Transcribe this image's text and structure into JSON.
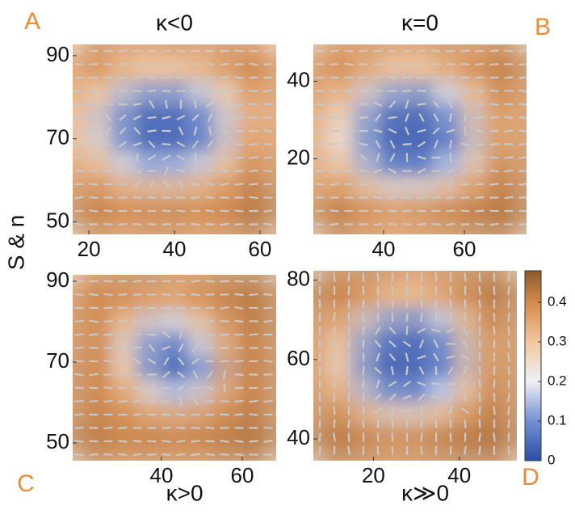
{
  "ylabel": "S & n",
  "colorbar": {
    "lim": [
      0,
      0.48
    ],
    "ticks": [
      0,
      0.1,
      0.2,
      0.3,
      0.4
    ],
    "colorscale": [
      [
        0,
        "#2b4ea6"
      ],
      [
        0.1,
        "#7390d2"
      ],
      [
        0.2,
        "#eef0f6"
      ],
      [
        0.3,
        "#f2c8a0"
      ],
      [
        0.4,
        "#d58a4a"
      ],
      [
        0.48,
        "#8c5a2c"
      ]
    ]
  },
  "chart_data": [
    {
      "type": "heatmap",
      "label": "A",
      "title": "κ<0",
      "xlim": [
        16.2,
        63.8
      ],
      "ylim": [
        47,
        92.7
      ],
      "xticks": [
        20,
        40,
        60
      ],
      "yticks": [
        50,
        70,
        90
      ],
      "director": "horizontal",
      "values": [
        [
          0.4,
          0.42,
          0.38,
          0.4,
          0.41,
          0.39,
          0.42,
          0.4
        ],
        [
          0.39,
          0.36,
          0.3,
          0.28,
          0.29,
          0.33,
          0.38,
          0.41
        ],
        [
          0.37,
          0.25,
          0.12,
          0.08,
          0.1,
          0.18,
          0.3,
          0.39
        ],
        [
          0.33,
          0.15,
          0.04,
          0.02,
          0.03,
          0.08,
          0.25,
          0.38
        ],
        [
          0.35,
          0.18,
          0.05,
          0.03,
          0.04,
          0.1,
          0.28,
          0.4
        ],
        [
          0.39,
          0.3,
          0.18,
          0.12,
          0.15,
          0.25,
          0.35,
          0.41
        ],
        [
          0.42,
          0.38,
          0.35,
          0.33,
          0.34,
          0.37,
          0.4,
          0.43
        ],
        [
          0.43,
          0.41,
          0.4,
          0.42,
          0.41,
          0.4,
          0.42,
          0.44
        ]
      ]
    },
    {
      "type": "heatmap",
      "label": "B",
      "title": "κ=0",
      "xlim": [
        22.6,
        75.4
      ],
      "ylim": [
        0.5,
        49.5
      ],
      "xticks": [
        40,
        60
      ],
      "yticks": [
        20,
        40
      ],
      "director": "horizontal",
      "values": [
        [
          0.42,
          0.4,
          0.41,
          0.39,
          0.4,
          0.42,
          0.41,
          0.43
        ],
        [
          0.4,
          0.38,
          0.32,
          0.28,
          0.3,
          0.35,
          0.4,
          0.42
        ],
        [
          0.39,
          0.3,
          0.15,
          0.08,
          0.1,
          0.2,
          0.35,
          0.41
        ],
        [
          0.37,
          0.22,
          0.05,
          0.02,
          0.03,
          0.1,
          0.3,
          0.4
        ],
        [
          0.36,
          0.2,
          0.04,
          0.02,
          0.03,
          0.08,
          0.28,
          0.41
        ],
        [
          0.38,
          0.28,
          0.12,
          0.05,
          0.08,
          0.18,
          0.34,
          0.42
        ],
        [
          0.41,
          0.37,
          0.3,
          0.25,
          0.28,
          0.35,
          0.4,
          0.43
        ],
        [
          0.43,
          0.42,
          0.4,
          0.39,
          0.41,
          0.42,
          0.43,
          0.44
        ]
      ]
    },
    {
      "type": "heatmap",
      "label": "C",
      "xlabel": "κ>0",
      "xlim": [
        18,
        68.4
      ],
      "ylim": [
        45.6,
        91.6
      ],
      "xticks": [
        40,
        60
      ],
      "yticks": [
        50,
        70,
        90
      ],
      "director": "horizontal",
      "values": [
        [
          0.42,
          0.41,
          0.43,
          0.42,
          0.4,
          0.42,
          0.43,
          0.44
        ],
        [
          0.41,
          0.4,
          0.38,
          0.35,
          0.36,
          0.4,
          0.42,
          0.43
        ],
        [
          0.42,
          0.39,
          0.28,
          0.15,
          0.18,
          0.32,
          0.41,
          0.43
        ],
        [
          0.42,
          0.38,
          0.18,
          0.04,
          0.05,
          0.22,
          0.4,
          0.42
        ],
        [
          0.43,
          0.39,
          0.25,
          0.05,
          0.03,
          0.12,
          0.38,
          0.43
        ],
        [
          0.42,
          0.4,
          0.35,
          0.22,
          0.15,
          0.28,
          0.4,
          0.42
        ],
        [
          0.43,
          0.41,
          0.4,
          0.38,
          0.37,
          0.4,
          0.42,
          0.43
        ],
        [
          0.44,
          0.42,
          0.41,
          0.42,
          0.41,
          0.42,
          0.43,
          0.44
        ]
      ]
    },
    {
      "type": "heatmap",
      "label": "D",
      "xlabel": "κ≫0",
      "xlim": [
        6,
        53.4
      ],
      "ylim": [
        34.5,
        82.4
      ],
      "xticks": [
        20,
        40
      ],
      "yticks": [
        40,
        60,
        80
      ],
      "director": "vertical",
      "values": [
        [
          0.44,
          0.42,
          0.43,
          0.41,
          0.4,
          0.42,
          0.43,
          0.44
        ],
        [
          0.43,
          0.4,
          0.36,
          0.3,
          0.32,
          0.36,
          0.41,
          0.43
        ],
        [
          0.41,
          0.33,
          0.15,
          0.08,
          0.1,
          0.18,
          0.36,
          0.42
        ],
        [
          0.4,
          0.25,
          0.06,
          0.02,
          0.03,
          0.08,
          0.3,
          0.41
        ],
        [
          0.4,
          0.24,
          0.05,
          0.02,
          0.04,
          0.09,
          0.31,
          0.42
        ],
        [
          0.41,
          0.32,
          0.14,
          0.07,
          0.1,
          0.2,
          0.36,
          0.42
        ],
        [
          0.43,
          0.39,
          0.33,
          0.28,
          0.3,
          0.36,
          0.41,
          0.43
        ],
        [
          0.44,
          0.43,
          0.42,
          0.41,
          0.42,
          0.43,
          0.44,
          0.44
        ]
      ]
    }
  ]
}
